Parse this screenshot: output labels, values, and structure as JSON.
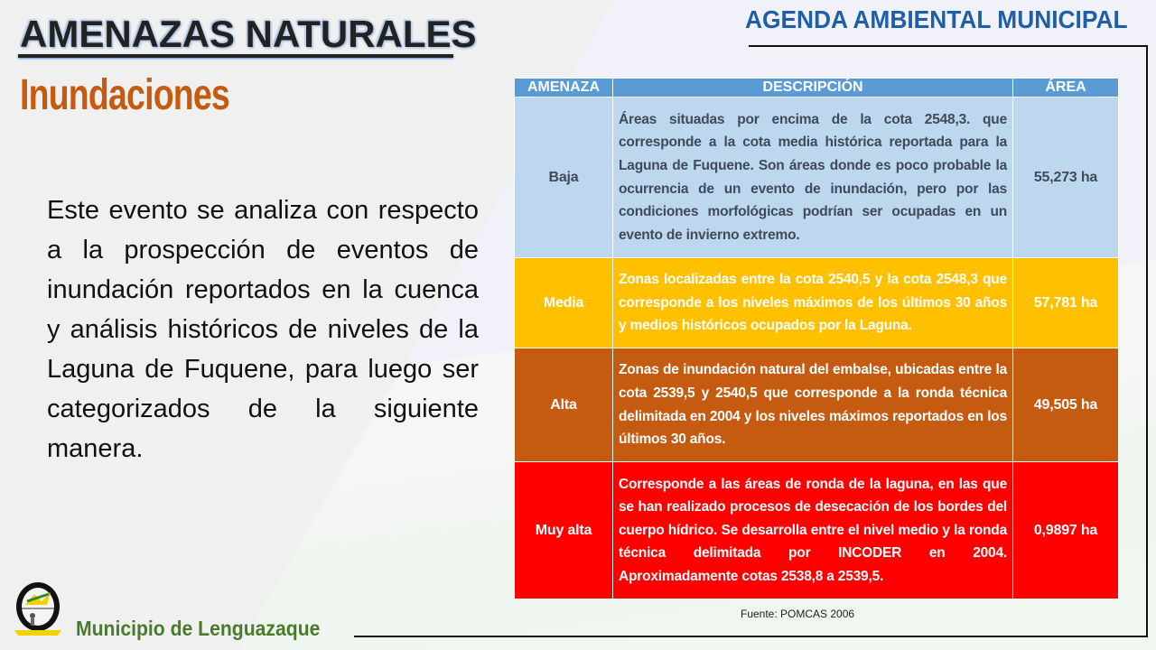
{
  "header": {
    "title": "AMENAZAS NATURALES",
    "subtitle": "Inundaciones",
    "agenda": "AGENDA AMBIENTAL MUNICIPAL"
  },
  "intro": "Este evento se analiza con respecto a la prospección de eventos de inundación reportados en la cuenca y análisis históricos de niveles de la Laguna de Fuquene, para luego ser categorizados de la siguiente manera.",
  "table": {
    "headers": [
      "AMENAZA",
      "DESCRIPCIÓN",
      "ÁREA"
    ],
    "rows": [
      {
        "level": "Baja",
        "description": "Áreas situadas por encima de la cota 2548,3. que corresponde a la cota media histórica reportada para la Laguna de Fuquene. Son áreas donde es poco probable la ocurrencia de un evento de inundación, pero por las condiciones morfológicas podrían ser ocupadas en un evento de invierno extremo.",
        "area": "55,273 ha",
        "color": "#bdd7ee"
      },
      {
        "level": "Media",
        "description": "Zonas localizadas entre la cota 2540,5 y la cota 2548,3 que corresponde a los niveles máximos de los últimos 30 años y medios históricos ocupados por la Laguna.",
        "area": "57,781 ha",
        "color": "#ffc000"
      },
      {
        "level": "Alta",
        "description": "Zonas de inundación natural del embalse, ubicadas entre la cota 2539,5 y 2540,5 que corresponde a la ronda técnica delimitada en 2004 y los niveles máximos reportados en los últimos 30 años.",
        "area": "49,505 ha",
        "color": "#c55a11"
      },
      {
        "level": "Muy alta",
        "description": "Corresponde a las áreas de ronda de la laguna, en las que se han realizado procesos de desecación de los bordes del cuerpo hídrico. Se desarrolla entre el nivel medio y la ronda técnica delimitada por INCODER en 2004. Aproximadamente cotas 2538,8 a 2539,5.",
        "area": "0,9897 ha",
        "color": "#ff0000"
      }
    ],
    "source": "Fuente: POMCAS 2006"
  },
  "footer": {
    "municipality": "Municipio de Lenguazaque",
    "logo_text": "MUNICIPIO DE LENGUAZAQUE"
  }
}
